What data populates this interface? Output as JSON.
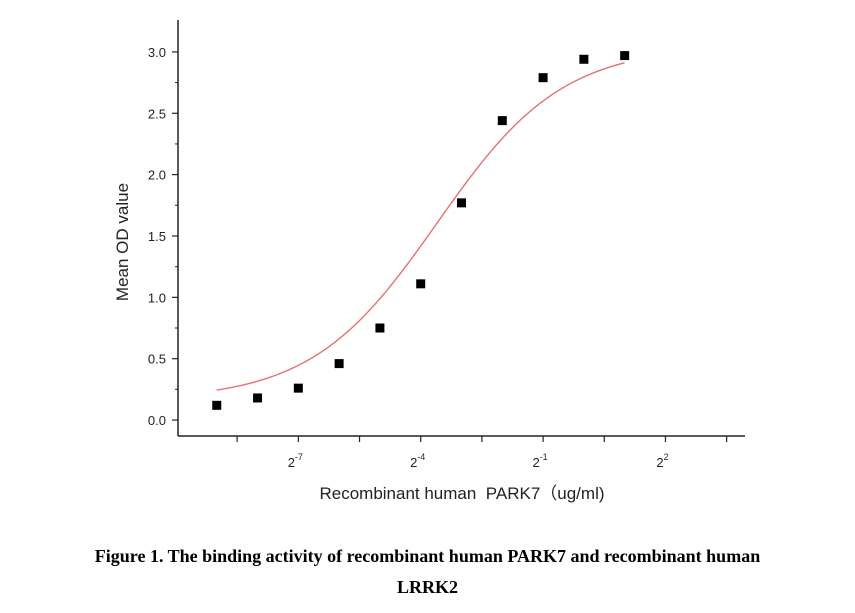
{
  "chart_data": {
    "type": "scatter",
    "title": "",
    "xlabel": "Recombinant human  PARK7（ug/ml)",
    "ylabel": "Mean OD value",
    "x_scale": "log2",
    "xlim": [
      -9.95,
      3.95
    ],
    "ylim": [
      -0.13,
      3.26
    ],
    "yticks": [
      0.0,
      0.5,
      1.0,
      1.5,
      2.0,
      2.5,
      3.0
    ],
    "ytick_labels": [
      "0.0",
      "0.5",
      "1.0",
      "1.5",
      "2.0",
      "2.5",
      "3.0"
    ],
    "xticks_labeled": [
      {
        "base": "2",
        "exp": "-7",
        "log2": -7
      },
      {
        "base": "2",
        "exp": "-4",
        "log2": -4
      },
      {
        "base": "2",
        "exp": "-1",
        "log2": -1
      },
      {
        "base": "2",
        "exp": "2",
        "log2": 2
      }
    ],
    "series": [
      {
        "marker": "square",
        "color": "#000000",
        "points_log2x": [
          -9,
          -8,
          -7,
          -6,
          -5,
          -4,
          -3,
          -2,
          -1,
          0,
          1
        ],
        "y": [
          0.12,
          0.18,
          0.26,
          0.46,
          0.75,
          1.11,
          1.77,
          2.44,
          2.79,
          2.94,
          2.97
        ]
      }
    ],
    "fit": {
      "type": "4PL",
      "color": "#e87070",
      "bottom": 0.16,
      "top": 3.05,
      "ec50_log2": -3.6,
      "slope": 0.65
    },
    "grid": false,
    "legend": "none"
  },
  "caption": {
    "line1": "Figure 1. The binding activity of recombinant human PARK7 and recombinant human",
    "line2": "LRRK2"
  }
}
